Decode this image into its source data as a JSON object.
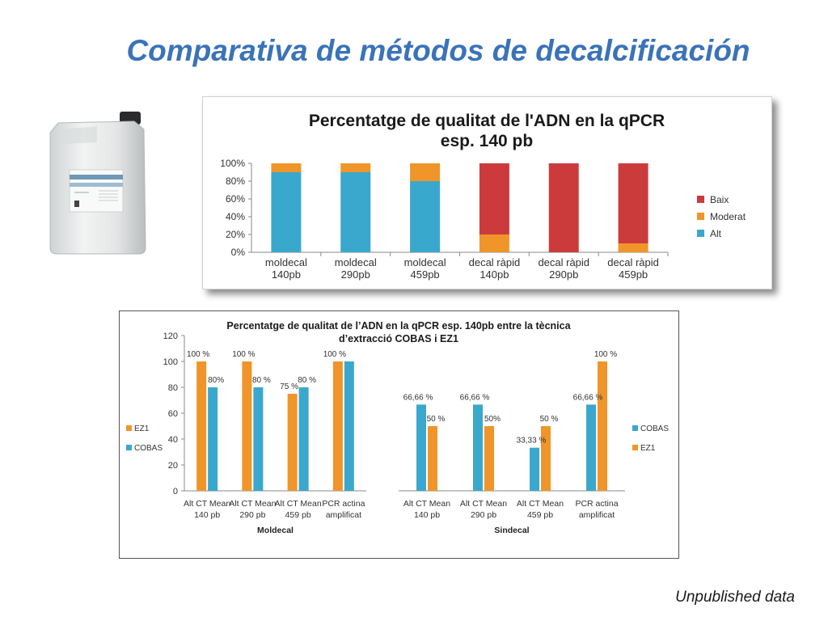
{
  "slide": {
    "title": "Comparativa de métodos de decalcificación",
    "footnote": "Unpublished data"
  },
  "colors": {
    "blue": "#3aa8cc",
    "orange": "#f0952a",
    "red": "#cc3b3b",
    "title_blue": "#3a73b8"
  },
  "chart_data": [
    {
      "type": "bar",
      "stacked": true,
      "title": "Percentatge de qualitat de l'ADN en la qPCR esp. 140 pb",
      "title_lines": [
        "Percentatge de qualitat de l'ADN en la qPCR",
        "esp. 140 pb"
      ],
      "categories": [
        [
          "moldecal",
          "140pb"
        ],
        [
          "moldecal",
          "290pb"
        ],
        [
          "moldecal",
          "459pb"
        ],
        [
          "decal ràpid",
          "140pb"
        ],
        [
          "decal ràpid",
          "290pb"
        ],
        [
          "decal ràpid",
          "459pb"
        ]
      ],
      "series": [
        {
          "name": "Alt",
          "color": "#3aa8cc",
          "values": [
            90,
            90,
            80,
            0,
            0,
            0
          ]
        },
        {
          "name": "Moderat",
          "color": "#f0952a",
          "values": [
            10,
            10,
            20,
            20,
            0,
            10
          ]
        },
        {
          "name": "Baix",
          "color": "#cc3b3b",
          "values": [
            0,
            0,
            0,
            80,
            100,
            90
          ]
        }
      ],
      "legend_order": [
        "Baix",
        "Moderat",
        "Alt"
      ],
      "ylim": [
        0,
        100
      ],
      "yticks": [
        "0%",
        "20%",
        "40%",
        "60%",
        "80%",
        "100%"
      ],
      "legend": "right",
      "grid": false
    },
    {
      "type": "bar",
      "stacked": false,
      "title": "Percentatge de qualitat de l’ADN en la qPCR esp. 140pb entre la tècnica d’extracció COBAS i EZ1",
      "title_lines": [
        "Percentatge de qualitat de l’ADN en la qPCR esp. 140pb entre la tècnica",
        "d’extracció COBAS i EZ1"
      ],
      "ylim": [
        0,
        120
      ],
      "yticks": [
        "0",
        "20",
        "40",
        "60",
        "80",
        "100",
        "120"
      ],
      "grid": false,
      "panels": [
        {
          "group_label": "Moldecal",
          "categories": [
            [
              "Alt CT Mean",
              "140 pb"
            ],
            [
              "Alt CT Mean",
              "290 pb"
            ],
            [
              "Alt CT Mean",
              "459 pb"
            ],
            [
              "PCR actina",
              "amplificat"
            ]
          ],
          "series": [
            {
              "name": "EZ1",
              "color": "#f0952a",
              "values": [
                100,
                100,
                75,
                100
              ],
              "labels": [
                "100 %",
                "100 %",
                "75 %",
                "100 %"
              ]
            },
            {
              "name": "COBAS",
              "color": "#3aa8cc",
              "values": [
                80,
                80,
                80,
                100
              ],
              "labels": [
                "80%",
                "80 %",
                "80 %",
                ""
              ]
            }
          ],
          "legend": [
            "EZ1",
            "COBAS"
          ]
        },
        {
          "group_label": "Sindecal",
          "categories": [
            [
              "Alt CT Mean",
              "140 pb"
            ],
            [
              "Alt CT Mean",
              "290 pb"
            ],
            [
              "Alt CT Mean",
              "459 pb"
            ],
            [
              "PCR actina",
              "amplificat"
            ]
          ],
          "series": [
            {
              "name": "COBAS",
              "color": "#3aa8cc",
              "values": [
                66.66,
                66.66,
                33.33,
                66.66
              ],
              "labels": [
                "66,66 %",
                "66,66 %",
                "33,33 %",
                "66,66 %"
              ]
            },
            {
              "name": "EZ1",
              "color": "#f0952a",
              "values": [
                50,
                50,
                50,
                100
              ],
              "labels": [
                "50 %",
                "50%",
                "50 %",
                "100 %"
              ]
            }
          ],
          "legend": [
            "COBAS",
            "EZ1"
          ]
        }
      ]
    }
  ]
}
